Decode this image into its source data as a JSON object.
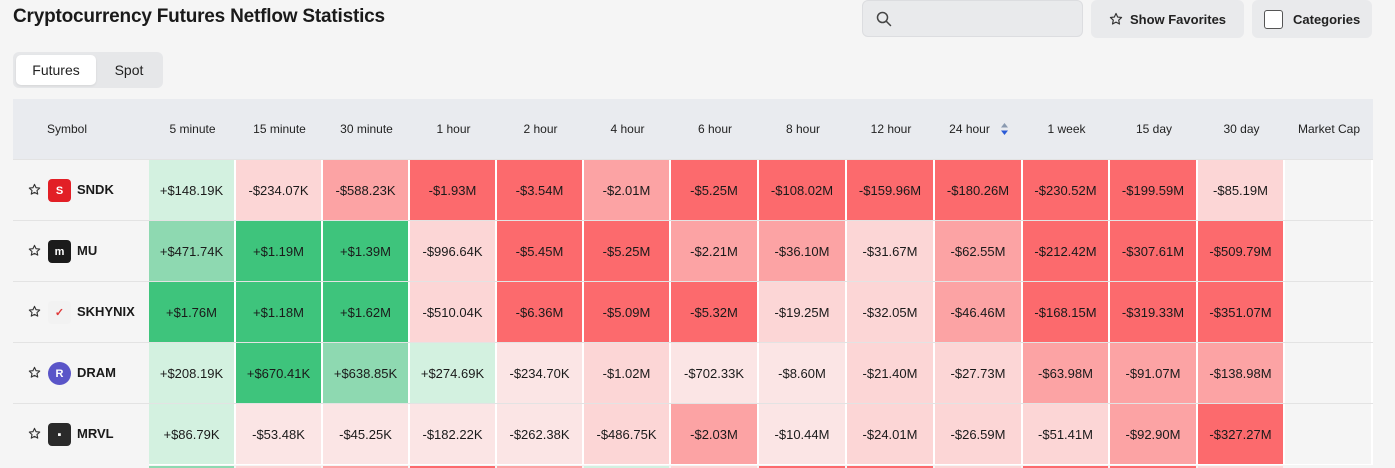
{
  "page": {
    "title": "Cryptocurrency Futures Netflow Statistics"
  },
  "search": {
    "placeholder": "",
    "icon": "search-icon"
  },
  "buttons": {
    "show_favorites": "Show Favorites",
    "categories": "Categories"
  },
  "tabs": [
    {
      "label": "Futures",
      "active": true
    },
    {
      "label": "Spot",
      "active": false
    }
  ],
  "columns": [
    "Symbol",
    "5 minute",
    "15 minute",
    "30 minute",
    "1 hour",
    "2 hour",
    "4 hour",
    "6 hour",
    "8 hour",
    "12 hour",
    "24 hour",
    "1 week",
    "15 day",
    "30 day",
    "Market Cap"
  ],
  "sorted_column": "24 hour",
  "colors": {
    "green_strong": "#3ec47c",
    "green_medium": "#8ed9b1",
    "green_light": "#d3f1e0",
    "red_strong": "#fc6a6d",
    "red_medium": "#fca3a4",
    "red_light": "#fcd6d6",
    "red_faint": "#fbe5e5"
  },
  "rows": [
    {
      "symbol": "SNDK",
      "logo_text": "S",
      "logo_color": "#e21f26",
      "market_cap": "",
      "values": [
        "+$148.19K",
        "-$234.07K",
        "-$588.23K",
        "-$1.93M",
        "-$3.54M",
        "-$2.01M",
        "-$5.25M",
        "-$108.02M",
        "-$159.96M",
        "-$180.26M",
        "-$230.52M",
        "-$199.59M",
        "-$85.19M"
      ],
      "tones": [
        "green_light",
        "red_light",
        "red_medium",
        "red_strong",
        "red_strong",
        "red_medium",
        "red_strong",
        "red_strong",
        "red_strong",
        "red_strong",
        "red_strong",
        "red_strong",
        "red_light"
      ]
    },
    {
      "symbol": "MU",
      "logo_text": "m",
      "logo_color": "#1b1b1b",
      "market_cap": "",
      "values": [
        "+$471.74K",
        "+$1.19M",
        "+$1.39M",
        "-$996.64K",
        "-$5.45M",
        "-$5.25M",
        "-$2.21M",
        "-$36.10M",
        "-$31.67M",
        "-$62.55M",
        "-$212.42M",
        "-$307.61M",
        "-$509.79M"
      ],
      "tones": [
        "green_medium",
        "green_strong",
        "green_strong",
        "red_light",
        "red_strong",
        "red_strong",
        "red_medium",
        "red_medium",
        "red_light",
        "red_medium",
        "red_strong",
        "red_strong",
        "red_strong"
      ]
    },
    {
      "symbol": "SKHYNIX",
      "logo_text": "✓",
      "logo_color": "#f2f2f2",
      "market_cap": "",
      "values": [
        "+$1.76M",
        "+$1.18M",
        "+$1.62M",
        "-$510.04K",
        "-$6.36M",
        "-$5.09M",
        "-$5.32M",
        "-$19.25M",
        "-$32.05M",
        "-$46.46M",
        "-$168.15M",
        "-$319.33M",
        "-$351.07M"
      ],
      "tones": [
        "green_strong",
        "green_strong",
        "green_strong",
        "red_light",
        "red_strong",
        "red_strong",
        "red_strong",
        "red_light",
        "red_light",
        "red_medium",
        "red_strong",
        "red_strong",
        "red_strong"
      ]
    },
    {
      "symbol": "DRAM",
      "logo_text": "R",
      "logo_color": "#5a55c8",
      "market_cap": "",
      "values": [
        "+$208.19K",
        "+$670.41K",
        "+$638.85K",
        "+$274.69K",
        "-$234.70K",
        "-$1.02M",
        "-$702.33K",
        "-$8.60M",
        "-$21.40M",
        "-$27.73M",
        "-$63.98M",
        "-$91.07M",
        "-$138.98M"
      ],
      "tones": [
        "green_light",
        "green_strong",
        "green_medium",
        "green_light",
        "red_faint",
        "red_light",
        "red_faint",
        "red_faint",
        "red_light",
        "red_light",
        "red_medium",
        "red_medium",
        "red_medium"
      ]
    },
    {
      "symbol": "MRVL",
      "logo_text": "▪",
      "logo_color": "#2a2a2a",
      "market_cap": "",
      "values": [
        "+$86.79K",
        "-$53.48K",
        "-$45.25K",
        "-$182.22K",
        "-$262.38K",
        "-$486.75K",
        "-$2.03M",
        "-$10.44M",
        "-$24.01M",
        "-$26.59M",
        "-$51.41M",
        "-$92.90M",
        "-$327.27M"
      ],
      "tones": [
        "green_light",
        "red_faint",
        "red_faint",
        "red_faint",
        "red_faint",
        "red_light",
        "red_medium",
        "red_faint",
        "red_light",
        "red_light",
        "red_light",
        "red_medium",
        "red_strong"
      ]
    }
  ]
}
